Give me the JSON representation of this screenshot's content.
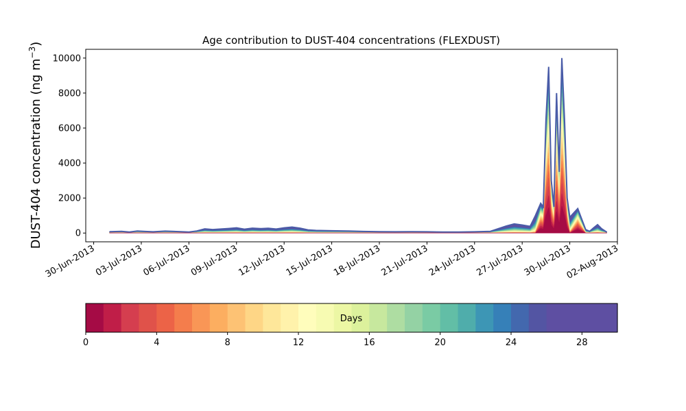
{
  "chart_data": {
    "type": "area",
    "title": "Age contribution to DUST-404 concentrations (FLEXDUST)",
    "ylabel": "DUST-404 concentration (ng m",
    "ylabel_sup": "−3",
    "ylabel_close": ")",
    "xlabel": "",
    "stacked": true,
    "ylim": [
      -500,
      10500
    ],
    "xlim": [
      "2013-06-29T12:00",
      "2013-08-02T00:00"
    ],
    "yticks": [
      0,
      2000,
      4000,
      6000,
      8000,
      10000
    ],
    "ytick_labels": [
      "0",
      "2000",
      "4000",
      "6000",
      "8000",
      "10000"
    ],
    "xticks": [
      "2013-06-30",
      "2013-07-03",
      "2013-07-06",
      "2013-07-09",
      "2013-07-12",
      "2013-07-15",
      "2013-07-18",
      "2013-07-21",
      "2013-07-24",
      "2013-07-27",
      "2013-07-30",
      "2013-08-02"
    ],
    "xtick_labels": [
      "30-Jun-2013",
      "03-Jul-2013",
      "06-Jul-2013",
      "09-Jul-2013",
      "12-Jul-2013",
      "15-Jul-2013",
      "18-Jul-2013",
      "21-Jul-2013",
      "24-Jul-2013",
      "27-Jul-2013",
      "30-Jul-2013",
      "02-Aug-2013"
    ],
    "total_series": {
      "x": [
        "2013-07-01T00:00",
        "2013-07-01T18:00",
        "2013-07-02T06:00",
        "2013-07-02T18:00",
        "2013-07-03T06:00",
        "2013-07-03T18:00",
        "2013-07-04T12:00",
        "2013-07-05T12:00",
        "2013-07-06T00:00",
        "2013-07-06T12:00",
        "2013-07-07T00:00",
        "2013-07-07T12:00",
        "2013-07-08T00:00",
        "2013-07-08T12:00",
        "2013-07-09T00:00",
        "2013-07-09T12:00",
        "2013-07-10T00:00",
        "2013-07-10T12:00",
        "2013-07-11T00:00",
        "2013-07-11T12:00",
        "2013-07-12T00:00",
        "2013-07-12T12:00",
        "2013-07-13T00:00",
        "2013-07-13T12:00",
        "2013-07-14T00:00",
        "2013-07-15T00:00",
        "2013-07-16T00:00",
        "2013-07-17T00:00",
        "2013-07-18T00:00",
        "2013-07-19T00:00",
        "2013-07-20T00:00",
        "2013-07-21T00:00",
        "2013-07-22T00:00",
        "2013-07-23T00:00",
        "2013-07-24T00:00",
        "2013-07-25T00:00",
        "2013-07-25T12:00",
        "2013-07-26T00:00",
        "2013-07-26T12:00",
        "2013-07-27T00:00",
        "2013-07-27T12:00",
        "2013-07-27T20:00",
        "2013-07-28T04:00",
        "2013-07-28T08:00",
        "2013-07-28T12:00",
        "2013-07-28T16:00",
        "2013-07-28T20:00",
        "2013-07-29T00:00",
        "2013-07-29T04:00",
        "2013-07-29T08:00",
        "2013-07-29T12:00",
        "2013-07-29T16:00",
        "2013-07-29T20:00",
        "2013-07-30T00:00",
        "2013-07-30T12:00",
        "2013-07-31T00:00",
        "2013-07-31T06:00",
        "2013-07-31T12:00",
        "2013-07-31T18:00",
        "2013-08-01T00:00",
        "2013-08-01T08:00"
      ],
      "y": [
        80,
        100,
        60,
        120,
        90,
        70,
        110,
        80,
        60,
        120,
        240,
        200,
        230,
        260,
        300,
        220,
        280,
        250,
        270,
        230,
        300,
        340,
        280,
        180,
        150,
        130,
        120,
        90,
        80,
        70,
        80,
        70,
        60,
        60,
        70,
        100,
        250,
        400,
        520,
        460,
        380,
        1000,
        1700,
        1500,
        6500,
        9500,
        3000,
        1500,
        8000,
        3500,
        10000,
        6500,
        2000,
        900,
        1400,
        200,
        100,
        300,
        480,
        250,
        50
      ]
    },
    "colorbar": {
      "label": "Days",
      "range": [
        0,
        30
      ],
      "steps": 30,
      "ticks": [
        0,
        4,
        8,
        12,
        16,
        20,
        24,
        28
      ],
      "tick_labels": [
        "0",
        "4",
        "8",
        "12",
        "16",
        "20",
        "24",
        "28"
      ],
      "colors": [
        "#a50b45",
        "#c01e48",
        "#d53e4f",
        "#e0524a",
        "#ec6347",
        "#f47d4c",
        "#f99656",
        "#fcae60",
        "#fdc274",
        "#fed686",
        "#fee79a",
        "#fff2ab",
        "#fffdbc",
        "#f7fbb2",
        "#ecf7a4",
        "#dcf19c",
        "#c7e89e",
        "#aedda2",
        "#94d2a4",
        "#7acba4",
        "#62bea6",
        "#4fadab",
        "#3d96b5",
        "#3680b8",
        "#4368ae",
        "#5355a3",
        "#5e4fa2",
        "#5e4fa2",
        "#5e4fa2",
        "#5e4fa2"
      ]
    }
  }
}
